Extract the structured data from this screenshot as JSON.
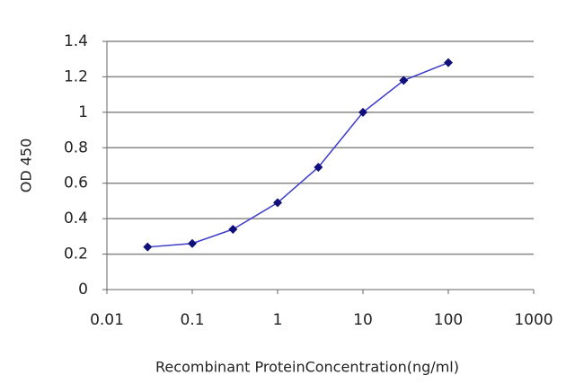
{
  "chart_data": {
    "type": "line",
    "x_label": "Recombinant ProteinConcentration(ng/ml)",
    "y_label": "OD 450",
    "x": [
      0.03,
      0.1,
      0.3,
      1,
      3,
      10,
      30,
      100
    ],
    "series": [
      {
        "color": "#3a3ac8",
        "marker_color": "#10107a",
        "values": [
          0.24,
          0.26,
          0.34,
          0.49,
          0.69,
          1.0,
          1.18,
          1.28
        ]
      }
    ],
    "xlog": true,
    "xlim": [
      0.01,
      1000
    ],
    "xticks": [
      0.01,
      0.1,
      1,
      10,
      100,
      1000
    ],
    "ylim": [
      0,
      1.4
    ],
    "yticks": [
      0,
      0.2,
      0.4,
      0.6,
      0.8,
      1,
      1.2,
      1.4
    ],
    "grid": true
  }
}
